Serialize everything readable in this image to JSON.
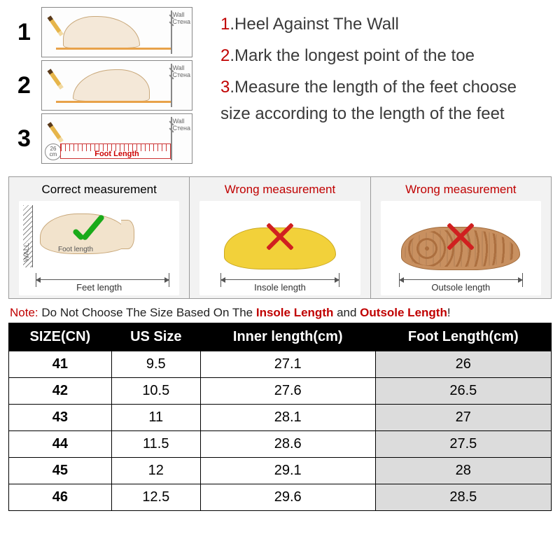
{
  "steps": {
    "s1": {
      "n": "1",
      "text": "Heel Against The Wall"
    },
    "s2": {
      "n": "2",
      "text": "Mark the longest point of the toe"
    },
    "s3": {
      "n": "3",
      "text": "Measure the length of the feet choose size according to the length of the feet"
    }
  },
  "diag": {
    "wall": "Wall",
    "wall_ru": "Стена",
    "foot_length": "Foot Length",
    "cm_val": "26",
    "cm_unit": "cm"
  },
  "mid": {
    "correct": "Correct measurement",
    "wrong": "Wrong measurement",
    "wall": "WALL",
    "foot_length_inner": "Foot length",
    "feet_length": "Feet length",
    "insole_length": "Insole length",
    "outsole_length": "Outsole length"
  },
  "note": {
    "label": "Note:",
    "pre": " Do Not Choose The Size Based On The ",
    "em1": "Insole Length",
    "mid": " and ",
    "em2": "Outsole Length",
    "post": "!"
  },
  "table": {
    "columns": [
      "SIZE(CN)",
      "US Size",
      "Inner length(cm)",
      "Foot Length(cm)"
    ],
    "rows": [
      [
        "41",
        "9.5",
        "27.1",
        "26"
      ],
      [
        "42",
        "10.5",
        "27.6",
        "26.5"
      ],
      [
        "43",
        "11",
        "28.1",
        "27"
      ],
      [
        "44",
        "11.5",
        "28.6",
        "27.5"
      ],
      [
        "45",
        "12",
        "29.1",
        "28"
      ],
      [
        "46",
        "12.5",
        "29.6",
        "28.5"
      ]
    ],
    "shaded_col_index": 3,
    "header_bg": "#000000",
    "header_fg": "#ffffff",
    "shade_bg": "#dcdcdc",
    "border": "#000000",
    "fontsize": 20
  },
  "colors": {
    "accent_red": "#c00000",
    "text": "#3a3a3a",
    "check_green": "#1aaa1a",
    "x_red": "#d02020",
    "insole_yellow": "#f2d13a",
    "outsole_tan": "#c89060",
    "foot_fill": "#f2e3cc",
    "ruler_red": "#c33333",
    "base_orange": "#e8a24a"
  },
  "typography": {
    "instruction_fontsize": 24,
    "mid_title_fontsize": 17,
    "note_fontsize": 17,
    "dim_label_fontsize": 13
  }
}
